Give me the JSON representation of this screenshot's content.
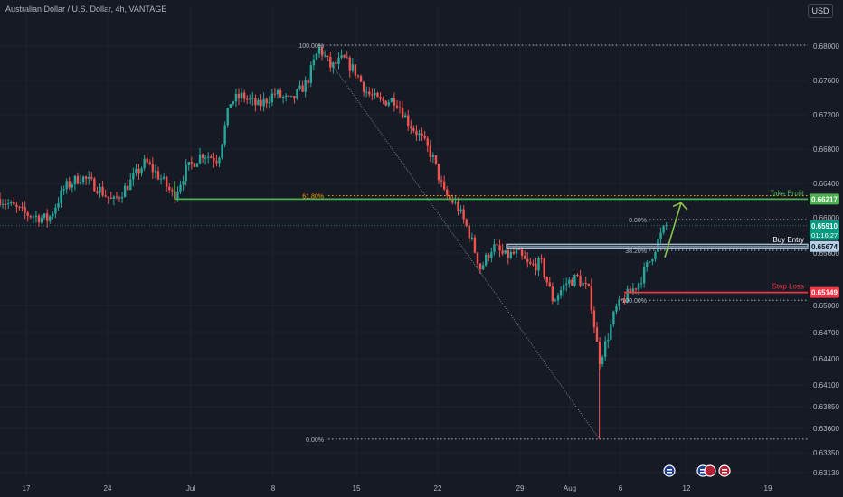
{
  "header": {
    "symbol_title": "Australian Dollar / U.S. Dollar, 4h, VANTAGE",
    "currency_button": "USD"
  },
  "colors": {
    "background": "#161a25",
    "grid": "#1f2330",
    "up_candle": "#26a69a",
    "down_candle": "#ef5350",
    "take_profit": "#4caf50",
    "stop_loss": "#f23645",
    "buy_entry": "#b2cfe6",
    "axis_text": "#b2b5be",
    "fib_38": "#b2b5be",
    "fib_61": "#ff9800",
    "arrow": "#8bc34a"
  },
  "chart_data": {
    "type": "candlestick",
    "instrument": "Australian Dollar / U.S. Dollar",
    "timeframe": "4h",
    "broker": "VANTAGE",
    "currency": "USD",
    "y_axis": {
      "ticks": [
        0.68,
        0.676,
        0.672,
        0.668,
        0.664,
        0.66,
        0.656,
        0.65,
        0.647,
        0.644,
        0.641,
        0.6385,
        0.636,
        0.6335,
        0.6313
      ],
      "tick_labels": [
        "0.68000",
        "0.67600",
        "0.67200",
        "0.66800",
        "0.66400",
        "0.66000",
        "0.65600",
        "0.65000",
        "0.64700",
        "0.64400",
        "0.64100",
        "0.63850",
        "0.63600",
        "0.63350",
        "0.63130"
      ]
    },
    "x_axis": {
      "labels": [
        "17",
        "24",
        "Jul",
        "8",
        "15",
        "22",
        "29",
        "Aug",
        "6",
        "12",
        "19"
      ]
    },
    "price_path": [
      {
        "t": 0,
        "p": 0.6622
      },
      {
        "t": 0.03,
        "p": 0.6605
      },
      {
        "t": 0.06,
        "p": 0.6598
      },
      {
        "t": 0.08,
        "p": 0.6635
      },
      {
        "t": 0.1,
        "p": 0.6648
      },
      {
        "t": 0.12,
        "p": 0.6636
      },
      {
        "t": 0.14,
        "p": 0.6618
      },
      {
        "t": 0.16,
        "p": 0.664
      },
      {
        "t": 0.18,
        "p": 0.6665
      },
      {
        "t": 0.2,
        "p": 0.6645
      },
      {
        "t": 0.215,
        "p": 0.6625
      },
      {
        "t": 0.23,
        "p": 0.6655
      },
      {
        "t": 0.25,
        "p": 0.6675
      },
      {
        "t": 0.27,
        "p": 0.6668
      },
      {
        "t": 0.285,
        "p": 0.6735
      },
      {
        "t": 0.3,
        "p": 0.6742
      },
      {
        "t": 0.32,
        "p": 0.673
      },
      {
        "t": 0.34,
        "p": 0.6745
      },
      {
        "t": 0.36,
        "p": 0.6735
      },
      {
        "t": 0.38,
        "p": 0.6758
      },
      {
        "t": 0.395,
        "p": 0.6798
      },
      {
        "t": 0.41,
        "p": 0.6775
      },
      {
        "t": 0.425,
        "p": 0.6785
      },
      {
        "t": 0.44,
        "p": 0.677
      },
      {
        "t": 0.455,
        "p": 0.6745
      },
      {
        "t": 0.47,
        "p": 0.6735
      },
      {
        "t": 0.49,
        "p": 0.6738
      },
      {
        "t": 0.505,
        "p": 0.6712
      },
      {
        "t": 0.52,
        "p": 0.6695
      },
      {
        "t": 0.535,
        "p": 0.6672
      },
      {
        "t": 0.55,
        "p": 0.6628
      },
      {
        "t": 0.565,
        "p": 0.6615
      },
      {
        "t": 0.58,
        "p": 0.6585
      },
      {
        "t": 0.595,
        "p": 0.6542
      },
      {
        "t": 0.61,
        "p": 0.6568
      },
      {
        "t": 0.625,
        "p": 0.6556
      },
      {
        "t": 0.64,
        "p": 0.656
      },
      {
        "t": 0.655,
        "p": 0.6545
      },
      {
        "t": 0.67,
        "p": 0.6548
      },
      {
        "t": 0.685,
        "p": 0.6505
      },
      {
        "t": 0.7,
        "p": 0.6525
      },
      {
        "t": 0.715,
        "p": 0.6532
      },
      {
        "t": 0.73,
        "p": 0.6515
      },
      {
        "t": 0.742,
        "p": 0.6438
      },
      {
        "t": 0.75,
        "p": 0.6458
      },
      {
        "t": 0.762,
        "p": 0.6495
      },
      {
        "t": 0.775,
        "p": 0.651
      },
      {
        "t": 0.79,
        "p": 0.6525
      },
      {
        "t": 0.805,
        "p": 0.6552
      },
      {
        "t": 0.815,
        "p": 0.6575
      },
      {
        "t": 0.825,
        "p": 0.6591
      }
    ],
    "extreme_low": 0.6349,
    "last_price": "0.65910",
    "countdown": "01:16:27",
    "levels": [
      {
        "name": "Take Profit",
        "value": 0.66217,
        "label": "0.66217"
      },
      {
        "name": "Buy Entry",
        "value": 0.65674,
        "label": "0.65674"
      },
      {
        "name": "Stop Loss",
        "value": 0.65149,
        "label": "0.65149"
      }
    ],
    "fib_high_to_low": {
      "high": 0.6801,
      "low": 0.6349,
      "labels": [
        "100.00%",
        "61.80%",
        "0.00%"
      ]
    },
    "fib_low_to_high": {
      "low": 0.6506,
      "high": 0.6598,
      "labels": [
        "0.00%",
        "38.20%",
        "100.00%"
      ]
    },
    "event_icons": [
      "au-flag-icon",
      "au-us-flag-icon",
      "us-flag-icon"
    ]
  }
}
